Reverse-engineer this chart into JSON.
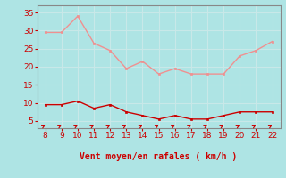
{
  "x": [
    8,
    9,
    10,
    11,
    12,
    13,
    14,
    15,
    16,
    17,
    18,
    19,
    20,
    21,
    22
  ],
  "rafales": [
    29.5,
    29.5,
    34.0,
    26.5,
    24.5,
    19.5,
    21.5,
    18.0,
    19.5,
    18.0,
    18.0,
    18.0,
    23.0,
    24.5,
    27.0
  ],
  "vent_moyen": [
    9.5,
    9.5,
    10.5,
    8.5,
    9.5,
    7.5,
    6.5,
    5.5,
    6.5,
    5.5,
    5.5,
    6.5,
    7.5,
    7.5,
    7.5
  ],
  "rafales_color": "#f09090",
  "vent_color": "#cc0000",
  "bg_color": "#aee4e4",
  "grid_color": "#c8e8e8",
  "xlabel": "Vent moyen/en rafales ( km/h )",
  "xlabel_color": "#cc0000",
  "tick_color": "#cc0000",
  "axis_color": "#888888",
  "ylim": [
    3,
    37
  ],
  "xlim": [
    7.5,
    22.5
  ],
  "yticks": [
    5,
    10,
    15,
    20,
    25,
    30,
    35
  ],
  "xticks": [
    8,
    9,
    10,
    11,
    12,
    13,
    14,
    15,
    16,
    17,
    18,
    19,
    20,
    21,
    22
  ]
}
